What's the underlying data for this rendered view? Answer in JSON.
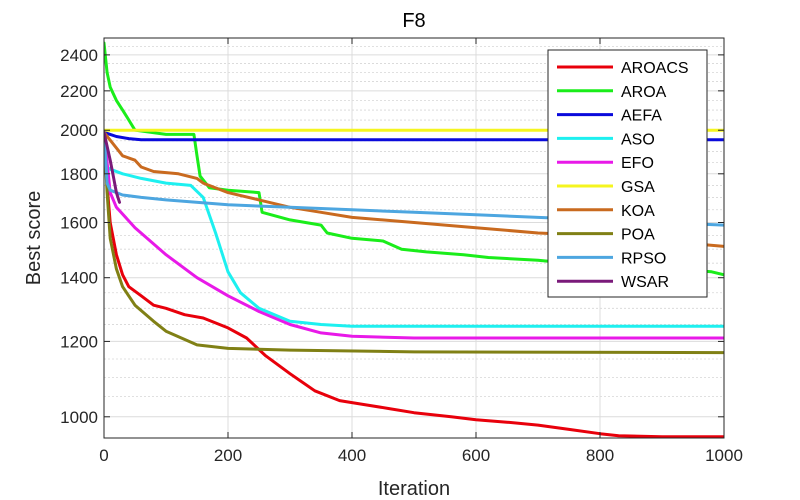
{
  "chart_data": {
    "type": "line",
    "title": "F8",
    "xlabel": "Iteration",
    "ylabel": "Best score",
    "xlim": [
      0,
      1000
    ],
    "ylim": [
      950,
      2500
    ],
    "yscale": "log",
    "grid": "on",
    "legend_position": "top-right",
    "x_ticks": [
      0,
      200,
      400,
      600,
      800,
      1000
    ],
    "x_tick_labels": [
      "0",
      "200",
      "400",
      "600",
      "800",
      "1000"
    ],
    "y_ticks": [
      1000,
      1200,
      1400,
      1600,
      1800,
      2000,
      2200,
      2400
    ],
    "y_tick_labels": [
      "1000",
      "1200",
      "1400",
      "1600",
      "1800",
      "2000",
      "2200",
      "2400"
    ],
    "series": [
      {
        "name": "AROACS",
        "color": "#e8000b",
        "points": [
          [
            0,
            1990
          ],
          [
            5,
            1750
          ],
          [
            10,
            1600
          ],
          [
            20,
            1480
          ],
          [
            30,
            1410
          ],
          [
            40,
            1370
          ],
          [
            60,
            1340
          ],
          [
            80,
            1310
          ],
          [
            100,
            1300
          ],
          [
            130,
            1280
          ],
          [
            160,
            1270
          ],
          [
            200,
            1240
          ],
          [
            230,
            1210
          ],
          [
            260,
            1160
          ],
          [
            300,
            1110
          ],
          [
            340,
            1065
          ],
          [
            380,
            1040
          ],
          [
            420,
            1030
          ],
          [
            460,
            1020
          ],
          [
            500,
            1010
          ],
          [
            560,
            1000
          ],
          [
            600,
            993
          ],
          [
            650,
            987
          ],
          [
            700,
            980
          ],
          [
            750,
            970
          ],
          [
            800,
            960
          ],
          [
            830,
            955
          ],
          [
            900,
            953
          ],
          [
            1000,
            953
          ]
        ]
      },
      {
        "name": "AROA",
        "color": "#1aed1a",
        "points": [
          [
            0,
            2470
          ],
          [
            5,
            2300
          ],
          [
            10,
            2220
          ],
          [
            20,
            2150
          ],
          [
            30,
            2100
          ],
          [
            40,
            2050
          ],
          [
            50,
            2000
          ],
          [
            100,
            1980
          ],
          [
            145,
            1980
          ],
          [
            150,
            1880
          ],
          [
            155,
            1790
          ],
          [
            170,
            1740
          ],
          [
            200,
            1730
          ],
          [
            250,
            1720
          ],
          [
            255,
            1640
          ],
          [
            300,
            1610
          ],
          [
            350,
            1590
          ],
          [
            360,
            1560
          ],
          [
            400,
            1540
          ],
          [
            450,
            1530
          ],
          [
            480,
            1500
          ],
          [
            520,
            1490
          ],
          [
            580,
            1480
          ],
          [
            620,
            1470
          ],
          [
            700,
            1460
          ],
          [
            750,
            1450
          ],
          [
            850,
            1440
          ],
          [
            980,
            1420
          ],
          [
            1000,
            1410
          ]
        ]
      },
      {
        "name": "AEFA",
        "color": "#0a0adb",
        "points": [
          [
            0,
            1990
          ],
          [
            10,
            1980
          ],
          [
            20,
            1970
          ],
          [
            40,
            1960
          ],
          [
            60,
            1955
          ],
          [
            1000,
            1955
          ]
        ]
      },
      {
        "name": "ASO",
        "color": "#1df0f0",
        "points": [
          [
            0,
            1840
          ],
          [
            10,
            1820
          ],
          [
            30,
            1800
          ],
          [
            60,
            1780
          ],
          [
            100,
            1760
          ],
          [
            140,
            1750
          ],
          [
            160,
            1700
          ],
          [
            180,
            1560
          ],
          [
            200,
            1420
          ],
          [
            220,
            1350
          ],
          [
            250,
            1300
          ],
          [
            300,
            1260
          ],
          [
            350,
            1250
          ],
          [
            400,
            1245
          ],
          [
            1000,
            1245
          ]
        ]
      },
      {
        "name": "EFO",
        "color": "#e819e8",
        "points": [
          [
            0,
            1990
          ],
          [
            10,
            1720
          ],
          [
            20,
            1660
          ],
          [
            50,
            1580
          ],
          [
            100,
            1480
          ],
          [
            150,
            1400
          ],
          [
            200,
            1340
          ],
          [
            250,
            1290
          ],
          [
            300,
            1250
          ],
          [
            350,
            1225
          ],
          [
            400,
            1215
          ],
          [
            500,
            1210
          ],
          [
            1000,
            1210
          ]
        ]
      },
      {
        "name": "GSA",
        "color": "#f5f51f",
        "points": [
          [
            0,
            2000
          ],
          [
            1000,
            2000
          ]
        ]
      },
      {
        "name": "KOA",
        "color": "#c96a1f",
        "points": [
          [
            0,
            1990
          ],
          [
            30,
            1880
          ],
          [
            50,
            1860
          ],
          [
            60,
            1830
          ],
          [
            80,
            1810
          ],
          [
            120,
            1800
          ],
          [
            150,
            1780
          ],
          [
            160,
            1760
          ],
          [
            200,
            1720
          ],
          [
            250,
            1690
          ],
          [
            300,
            1660
          ],
          [
            350,
            1640
          ],
          [
            400,
            1620
          ],
          [
            500,
            1600
          ],
          [
            600,
            1580
          ],
          [
            700,
            1560
          ],
          [
            800,
            1550
          ],
          [
            900,
            1530
          ],
          [
            1000,
            1510
          ]
        ]
      },
      {
        "name": "POA",
        "color": "#808015",
        "points": [
          [
            0,
            1990
          ],
          [
            5,
            1720
          ],
          [
            10,
            1540
          ],
          [
            20,
            1430
          ],
          [
            30,
            1370
          ],
          [
            50,
            1310
          ],
          [
            80,
            1260
          ],
          [
            100,
            1230
          ],
          [
            150,
            1190
          ],
          [
            200,
            1180
          ],
          [
            300,
            1175
          ],
          [
            500,
            1170
          ],
          [
            1000,
            1168
          ]
        ]
      },
      {
        "name": "RPSO",
        "color": "#4da6e0",
        "points": [
          [
            0,
            1990
          ],
          [
            5,
            1760
          ],
          [
            10,
            1730
          ],
          [
            30,
            1710
          ],
          [
            60,
            1700
          ],
          [
            100,
            1690
          ],
          [
            200,
            1670
          ],
          [
            300,
            1660
          ],
          [
            400,
            1650
          ],
          [
            500,
            1640
          ],
          [
            600,
            1630
          ],
          [
            700,
            1620
          ],
          [
            800,
            1610
          ],
          [
            900,
            1600
          ],
          [
            1000,
            1590
          ]
        ]
      },
      {
        "name": "WSAR",
        "color": "#7a1a7a",
        "points": [
          [
            0,
            1990
          ],
          [
            10,
            1860
          ],
          [
            15,
            1790
          ],
          [
            20,
            1720
          ],
          [
            25,
            1680
          ]
        ]
      }
    ]
  }
}
